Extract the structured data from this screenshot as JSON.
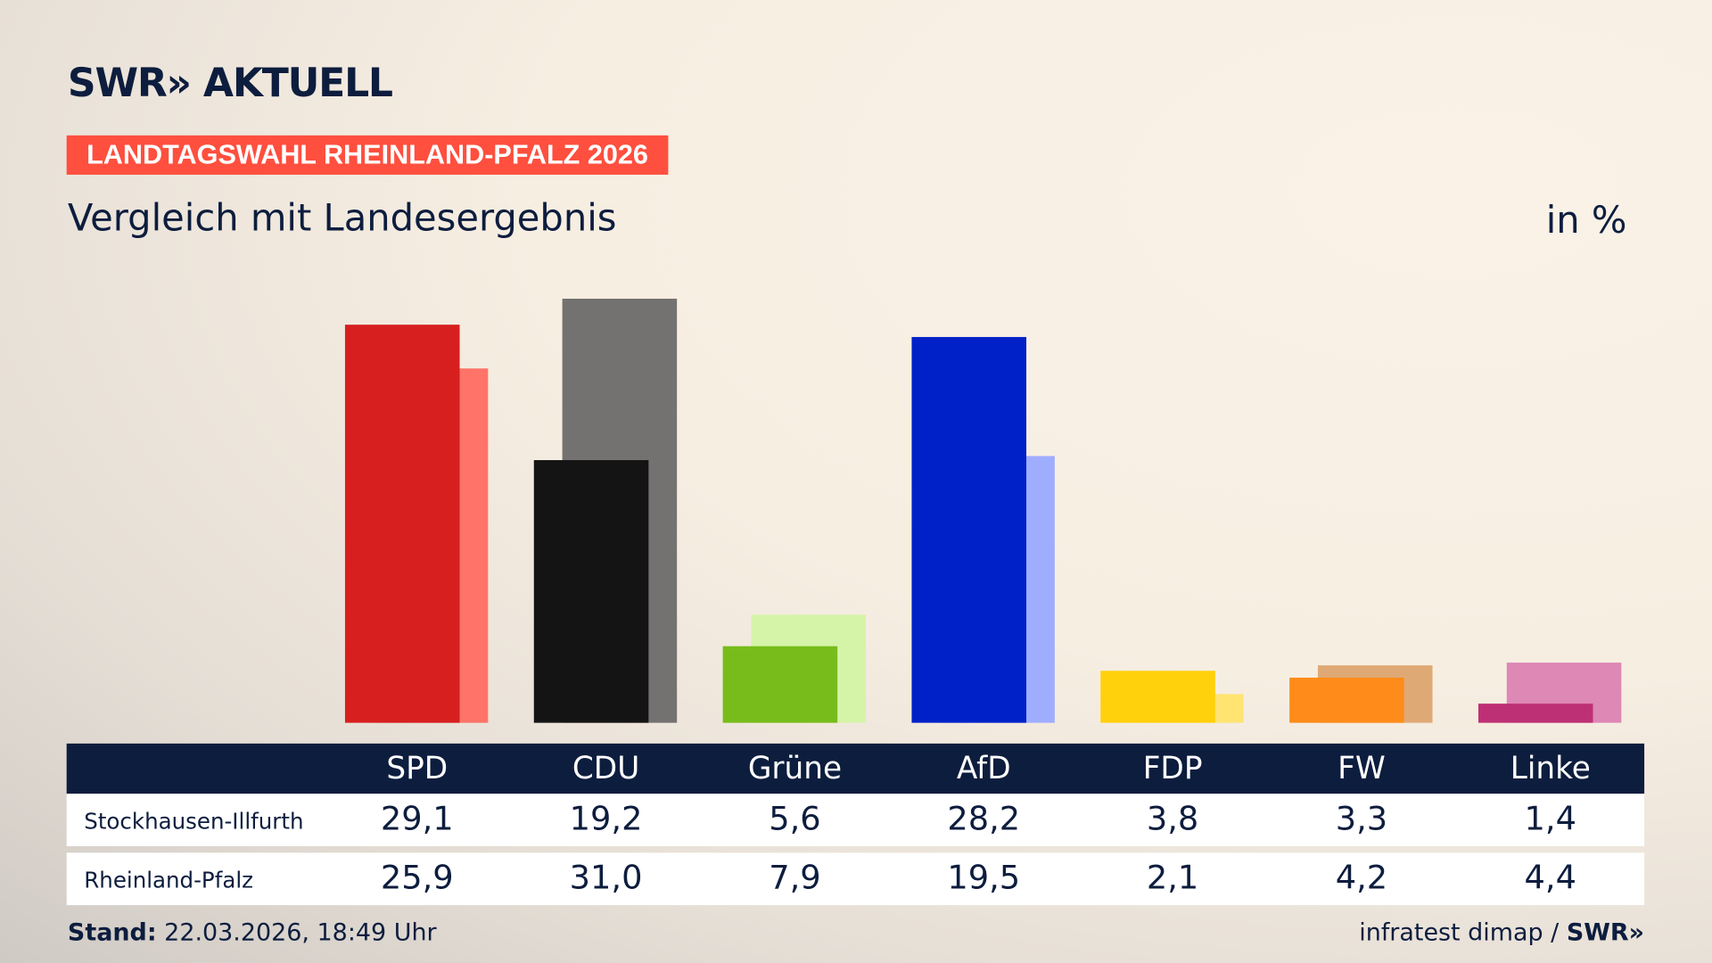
{
  "header": {
    "logo": "SWR» AKTUELL",
    "kicker": "LANDTAGSWAHL RHEINLAND-PFALZ 2026",
    "subtitle": "Vergleich mit Landesergebnis",
    "unit": "in %"
  },
  "chart_data": {
    "type": "bar",
    "categories": [
      "SPD",
      "CDU",
      "Grüne",
      "AfD",
      "FDP",
      "FW",
      "Linke"
    ],
    "series": [
      {
        "name": "Stockhausen-Illfurth",
        "values": [
          29.1,
          19.2,
          5.6,
          28.2,
          3.8,
          3.3,
          1.4
        ],
        "display": [
          "29,1",
          "19,2",
          "5,6",
          "28,2",
          "3,8",
          "3,3",
          "1,4"
        ]
      },
      {
        "name": "Rheinland-Pfalz",
        "values": [
          25.9,
          31.0,
          7.9,
          19.5,
          2.1,
          4.2,
          4.4
        ],
        "display": [
          "25,9",
          "31,0",
          "7,9",
          "19,5",
          "2,1",
          "4,2",
          "4,4"
        ]
      }
    ],
    "colors_primary": [
      "#d71f1f",
      "#141414",
      "#77bc1b",
      "#0021c8",
      "#ffd00c",
      "#ff8c1a",
      "#be3075"
    ],
    "colors_secondary": [
      "#ff7369",
      "#737270",
      "#d6f4a8",
      "#9fadfe",
      "#ffe472",
      "#dfa976",
      "#de88b5"
    ],
    "ylim": [
      0,
      31
    ],
    "grid": false
  },
  "footer": {
    "stand_label": "Stand:",
    "stand_value": " 22.03.2026, 18:49 Uhr",
    "source": "infratest dimap / ",
    "source_logo": "SWR»"
  }
}
